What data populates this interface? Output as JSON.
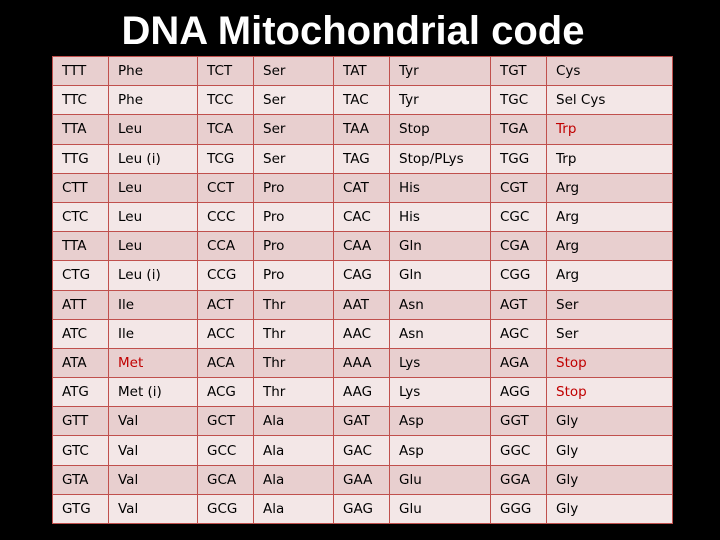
{
  "title": "DNA Mitochondrial code",
  "highlight_color": "#c00000",
  "rows": [
    [
      {
        "t": "TTT"
      },
      {
        "t": "Phe"
      },
      {
        "t": "TCT"
      },
      {
        "t": "Ser"
      },
      {
        "t": "TAT"
      },
      {
        "t": "Tyr"
      },
      {
        "t": "TGT"
      },
      {
        "t": "Cys"
      }
    ],
    [
      {
        "t": "TTC"
      },
      {
        "t": "Phe"
      },
      {
        "t": "TCC"
      },
      {
        "t": "Ser"
      },
      {
        "t": "TAC"
      },
      {
        "t": "Tyr"
      },
      {
        "t": "TGC"
      },
      {
        "t": "Sel Cys"
      }
    ],
    [
      {
        "t": "TTA"
      },
      {
        "t": "Leu"
      },
      {
        "t": "TCA"
      },
      {
        "t": "Ser"
      },
      {
        "t": "TAA"
      },
      {
        "t": "Stop"
      },
      {
        "t": "TGA"
      },
      {
        "t": "Trp",
        "hl": true
      }
    ],
    [
      {
        "t": "TTG"
      },
      {
        "t": "Leu  (i)"
      },
      {
        "t": "TCG"
      },
      {
        "t": "Ser"
      },
      {
        "t": "TAG"
      },
      {
        "t": "Stop/PLys"
      },
      {
        "t": "TGG"
      },
      {
        "t": "Trp"
      }
    ],
    [
      {
        "t": "CTT"
      },
      {
        "t": "Leu"
      },
      {
        "t": "CCT"
      },
      {
        "t": "Pro"
      },
      {
        "t": "CAT"
      },
      {
        "t": "His"
      },
      {
        "t": "CGT"
      },
      {
        "t": "Arg"
      }
    ],
    [
      {
        "t": "CTC"
      },
      {
        "t": "Leu"
      },
      {
        "t": "CCC"
      },
      {
        "t": "Pro"
      },
      {
        "t": "CAC"
      },
      {
        "t": "His"
      },
      {
        "t": "CGC"
      },
      {
        "t": "Arg"
      }
    ],
    [
      {
        "t": "TTA"
      },
      {
        "t": "Leu"
      },
      {
        "t": "CCA"
      },
      {
        "t": "Pro"
      },
      {
        "t": "CAA"
      },
      {
        "t": "Gln"
      },
      {
        "t": "CGA"
      },
      {
        "t": "Arg"
      }
    ],
    [
      {
        "t": "CTG"
      },
      {
        "t": "Leu   (i)"
      },
      {
        "t": "CCG"
      },
      {
        "t": "Pro"
      },
      {
        "t": "CAG"
      },
      {
        "t": "Gln"
      },
      {
        "t": "CGG"
      },
      {
        "t": "Arg"
      }
    ],
    [
      {
        "t": "ATT"
      },
      {
        "t": "Ile"
      },
      {
        "t": "ACT"
      },
      {
        "t": "Thr"
      },
      {
        "t": "AAT"
      },
      {
        "t": "Asn"
      },
      {
        "t": "AGT"
      },
      {
        "t": "Ser"
      }
    ],
    [
      {
        "t": "ATC"
      },
      {
        "t": "Ile"
      },
      {
        "t": "ACC"
      },
      {
        "t": "Thr"
      },
      {
        "t": "AAC"
      },
      {
        "t": "Asn"
      },
      {
        "t": "AGC"
      },
      {
        "t": "Ser"
      }
    ],
    [
      {
        "t": "ATA"
      },
      {
        "t": "Met",
        "hl": true
      },
      {
        "t": "ACA"
      },
      {
        "t": "Thr"
      },
      {
        "t": "AAA"
      },
      {
        "t": "Lys"
      },
      {
        "t": "AGA"
      },
      {
        "t": "Stop",
        "hl": true
      }
    ],
    [
      {
        "t": "ATG"
      },
      {
        "t": "Met   (i)"
      },
      {
        "t": "ACG"
      },
      {
        "t": "Thr"
      },
      {
        "t": "AAG"
      },
      {
        "t": "Lys"
      },
      {
        "t": "AGG"
      },
      {
        "t": "Stop",
        "hl": true
      }
    ],
    [
      {
        "t": "GTT"
      },
      {
        "t": "Val"
      },
      {
        "t": "GCT"
      },
      {
        "t": "Ala"
      },
      {
        "t": "GAT"
      },
      {
        "t": "Asp"
      },
      {
        "t": "GGT"
      },
      {
        "t": "Gly"
      }
    ],
    [
      {
        "t": "GTC"
      },
      {
        "t": "Val"
      },
      {
        "t": "GCC"
      },
      {
        "t": "Ala"
      },
      {
        "t": "GAC"
      },
      {
        "t": "Asp"
      },
      {
        "t": "GGC"
      },
      {
        "t": "Gly"
      }
    ],
    [
      {
        "t": "GTA"
      },
      {
        "t": "Val"
      },
      {
        "t": "GCA"
      },
      {
        "t": "Ala"
      },
      {
        "t": "GAA"
      },
      {
        "t": "Glu"
      },
      {
        "t": "GGA"
      },
      {
        "t": "Gly"
      }
    ],
    [
      {
        "t": "GTG"
      },
      {
        "t": "Val"
      },
      {
        "t": "GCG"
      },
      {
        "t": "Ala"
      },
      {
        "t": "GAG"
      },
      {
        "t": "Glu"
      },
      {
        "t": "GGG"
      },
      {
        "t": "Gly"
      }
    ]
  ]
}
